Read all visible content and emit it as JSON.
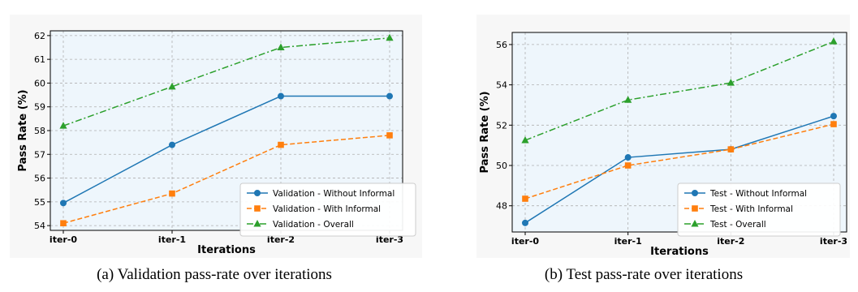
{
  "colors": {
    "plot_bg": "#eef6fc",
    "figure_bg": "#f7f7f7",
    "grid": "#b0b0b0",
    "series": [
      "#1f77b4",
      "#ff7f0e",
      "#2ca02c"
    ]
  },
  "chart_data": [
    {
      "type": "line",
      "categories": [
        "iter-0",
        "iter-1",
        "iter-2",
        "iter-3"
      ],
      "series": [
        {
          "name": "Validation - Without Informal",
          "values": [
            54.95,
            57.4,
            59.45,
            59.45
          ],
          "marker": "circle",
          "linestyle": "solid",
          "color": "#1f77b4"
        },
        {
          "name": "Validation - With Informal",
          "values": [
            54.1,
            55.35,
            57.4,
            57.8
          ],
          "marker": "square",
          "linestyle": "dashed",
          "color": "#ff7f0e"
        },
        {
          "name": "Validation - Overall",
          "values": [
            58.2,
            59.85,
            61.5,
            61.9
          ],
          "marker": "triangle",
          "linestyle": "dashdot",
          "color": "#2ca02c"
        }
      ],
      "xlabel": "Iterations",
      "ylabel": "Pass Rate (%)",
      "ylim": [
        53.8,
        62.2
      ],
      "yticks": [
        54,
        55,
        56,
        57,
        58,
        59,
        60,
        61,
        62
      ],
      "grid": true,
      "legend_position": "lower-right",
      "caption": "(a) Validation pass-rate over iterations"
    },
    {
      "type": "line",
      "categories": [
        "iter-0",
        "iter-1",
        "iter-2",
        "iter-3"
      ],
      "series": [
        {
          "name": "Test - Without Informal",
          "values": [
            47.15,
            50.4,
            50.8,
            52.45
          ],
          "marker": "circle",
          "linestyle": "solid",
          "color": "#1f77b4"
        },
        {
          "name": "Test - With Informal",
          "values": [
            48.35,
            50.0,
            50.8,
            52.05
          ],
          "marker": "square",
          "linestyle": "dashed",
          "color": "#ff7f0e"
        },
        {
          "name": "Test - Overall",
          "values": [
            51.25,
            53.25,
            54.1,
            56.15
          ],
          "marker": "triangle",
          "linestyle": "dashdot",
          "color": "#2ca02c"
        }
      ],
      "xlabel": "Iterations",
      "ylabel": "Pass Rate (%)",
      "ylim": [
        46.7,
        56.6
      ],
      "yticks": [
        48,
        50,
        52,
        54,
        56
      ],
      "grid": true,
      "legend_position": "lower-right",
      "caption": "(b) Test pass-rate over iterations"
    }
  ]
}
